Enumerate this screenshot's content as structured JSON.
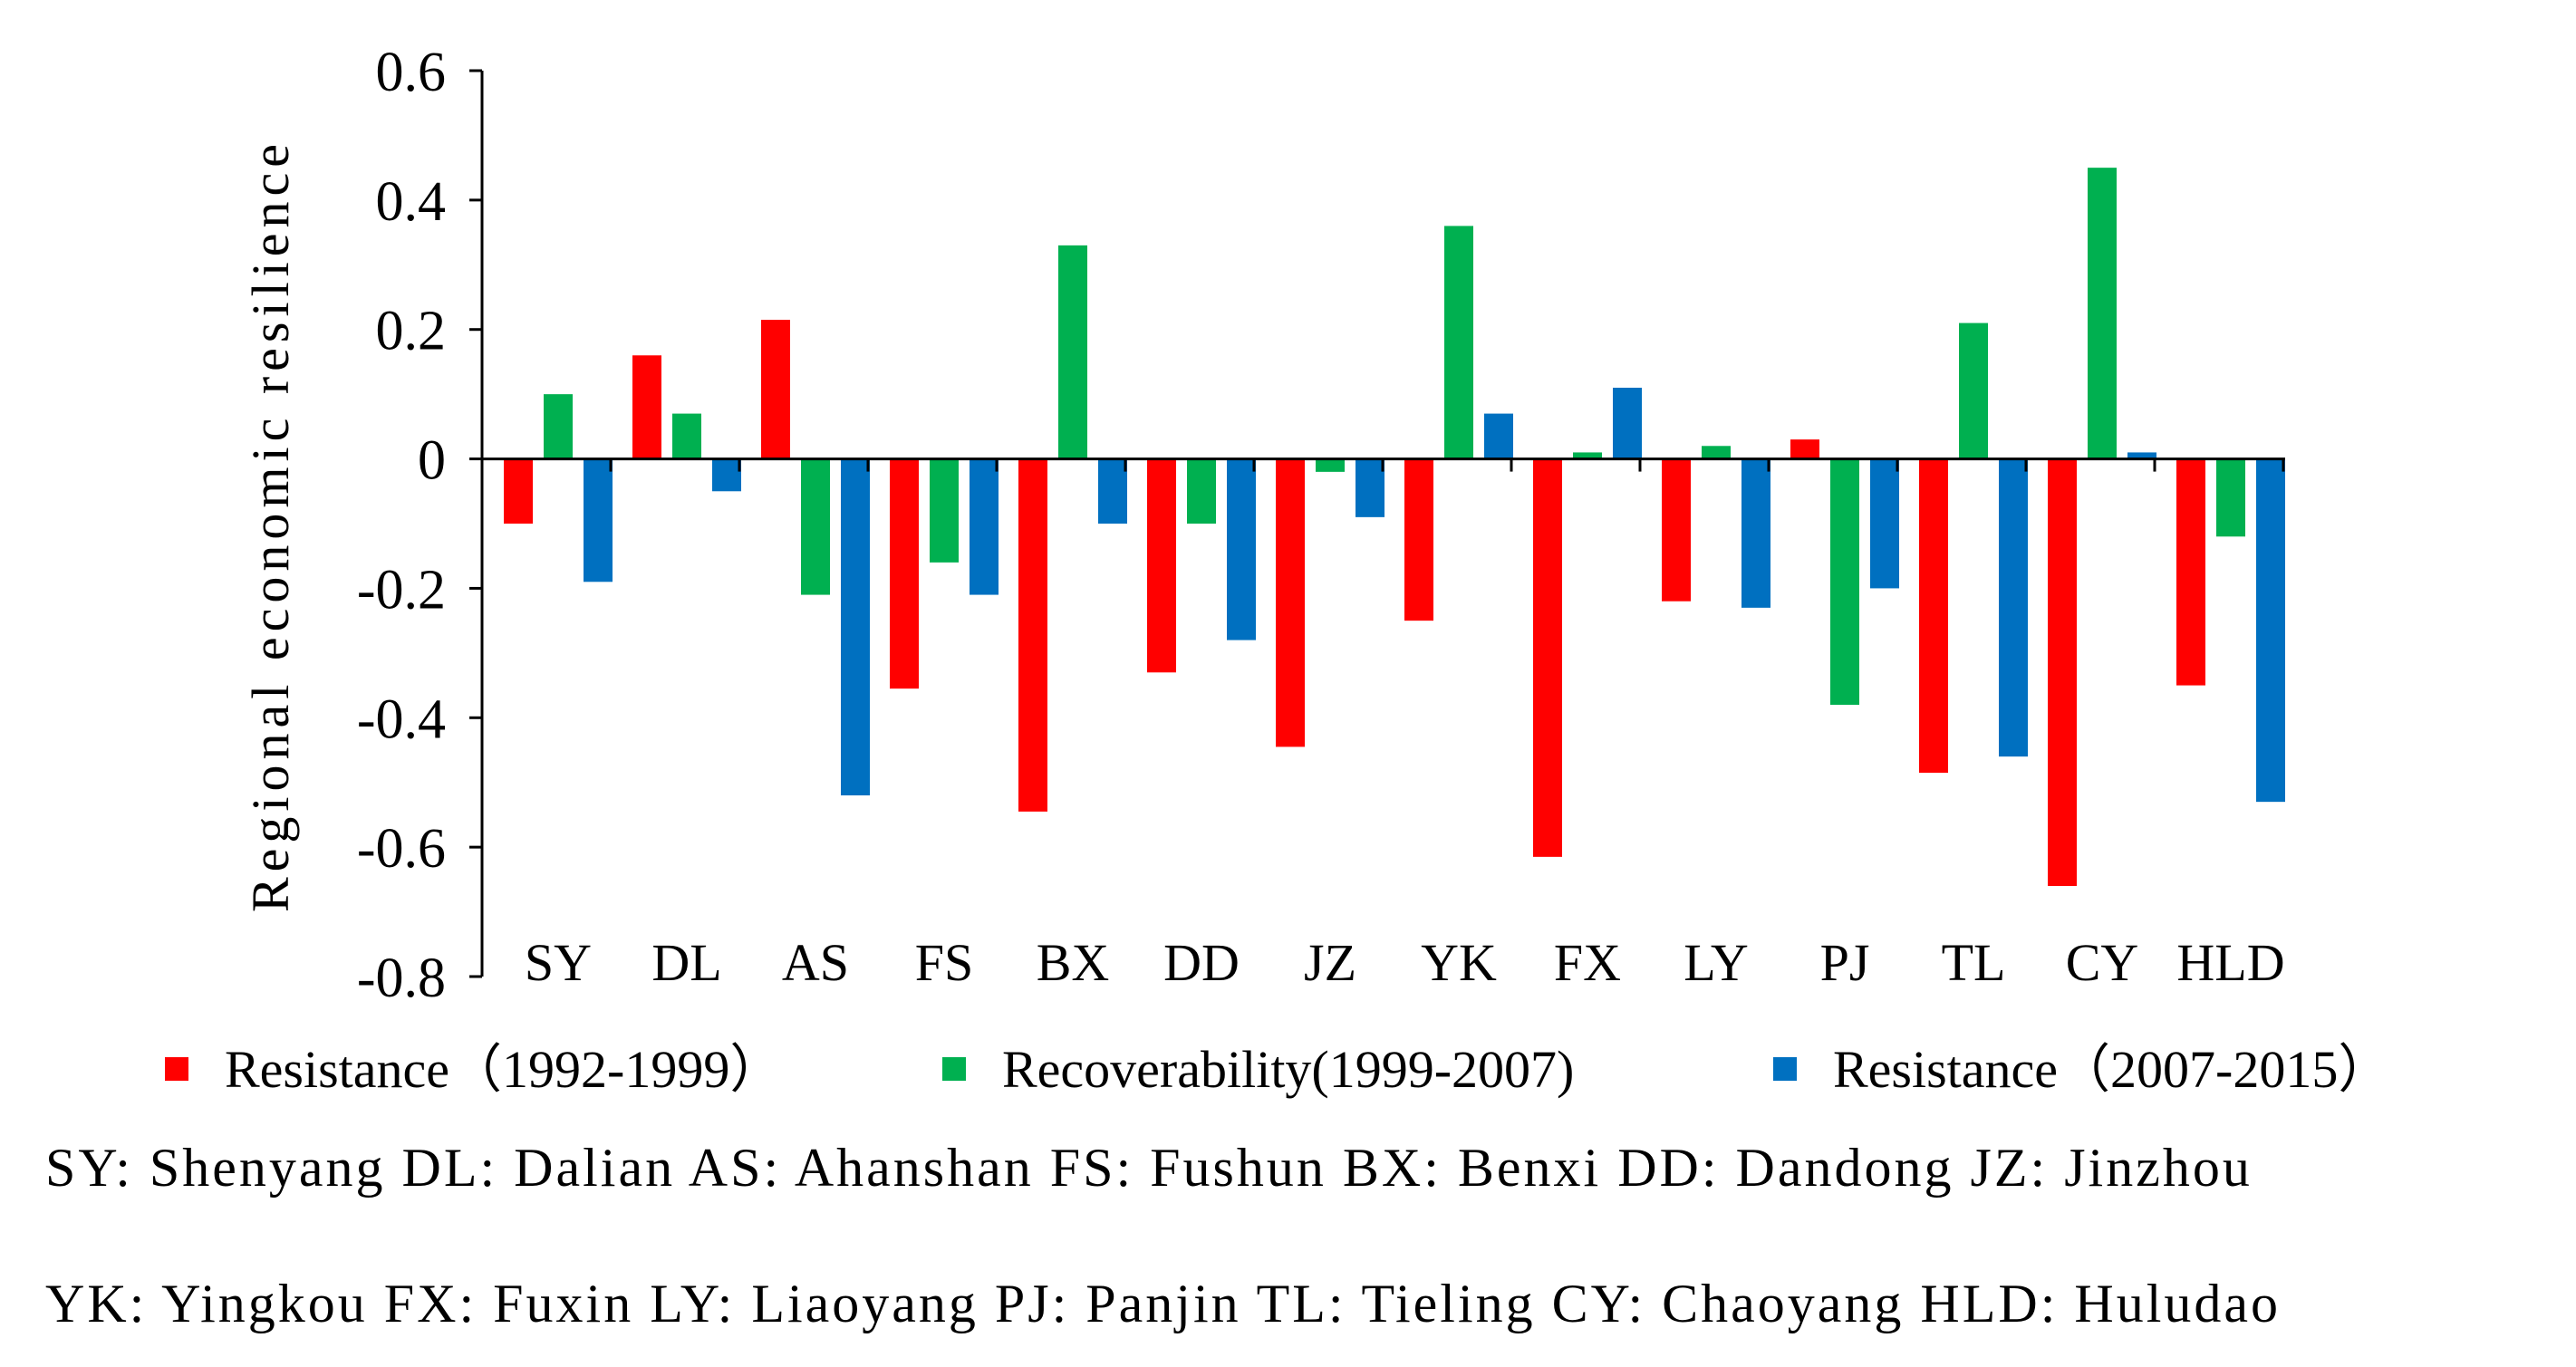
{
  "chart_data": {
    "type": "bar",
    "title": "",
    "xlabel": "",
    "ylabel": "Regional  economic  resilience",
    "ylim": [
      -0.8,
      0.6
    ],
    "yticks": [
      0.6,
      0.4,
      0.2,
      0,
      -0.2,
      -0.4,
      -0.6,
      -0.8
    ],
    "ytick_labels": [
      "0.6",
      "0.4",
      "0.2",
      "0",
      "-0.2",
      "-0.4",
      "-0.6",
      "-0.8"
    ],
    "categories": [
      "SY",
      "DL",
      "AS",
      "FS",
      "BX",
      "DD",
      "JZ",
      "YK",
      "FX",
      "LY",
      "PJ",
      "TL",
      "CY",
      "HLD"
    ],
    "series": [
      {
        "name": "Resistance（1992-1999）",
        "color": "#ff0000",
        "values": [
          -0.1,
          0.16,
          0.215,
          -0.355,
          -0.545,
          -0.33,
          -0.445,
          -0.25,
          -0.615,
          -0.22,
          0.03,
          -0.485,
          -0.66,
          -0.35
        ]
      },
      {
        "name": "Recoverability(1999-2007)",
        "color": "#00b050",
        "values": [
          0.1,
          0.07,
          -0.21,
          -0.16,
          0.33,
          -0.1,
          -0.02,
          0.36,
          0.01,
          0.02,
          -0.38,
          0.21,
          0.45,
          -0.12
        ]
      },
      {
        "name": "Resistance（2007-2015）",
        "color": "#0070c0",
        "values": [
          -0.19,
          -0.05,
          -0.52,
          -0.21,
          -0.1,
          -0.28,
          -0.09,
          0.07,
          0.11,
          -0.23,
          -0.2,
          -0.46,
          0.01,
          -0.53
        ]
      }
    ],
    "legend_position": "bottom"
  },
  "abbreviations": {
    "line1": "SY: Shenyang  DL: Dalian  AS: Ahanshan  FS: Fushun  BX: Benxi  DD: Dandong  JZ: Jinzhou",
    "line2": "YK: Yingkou  FX: Fuxin  LY: Liaoyang  PJ: Panjin  TL: Tieling  CY: Chaoyang  HLD: Huludao"
  }
}
